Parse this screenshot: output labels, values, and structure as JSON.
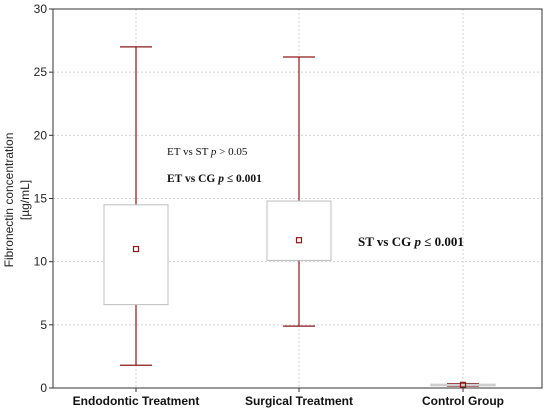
{
  "chart_data": {
    "type": "box",
    "ylabel_line1": "Fibronectin concentration",
    "ylabel_line2": "[µg/mL]",
    "ylim": [
      0,
      30
    ],
    "yticks": [
      0,
      5,
      10,
      15,
      20,
      25,
      30
    ],
    "grid": true,
    "categories": [
      "Endodontic Treatment",
      "Surgical Treatment",
      "Control Group"
    ],
    "boxes": [
      {
        "category": "Endodontic Treatment",
        "min": 1.8,
        "q1": 6.6,
        "median": 11.0,
        "q3": 14.5,
        "max": 27.0
      },
      {
        "category": "Surgical Treatment",
        "min": 4.9,
        "q1": 10.1,
        "median": 11.7,
        "q3": 14.8,
        "max": 26.2
      },
      {
        "category": "Control Group",
        "min": 0.15,
        "q1": 0.2,
        "median": 0.25,
        "q3": 0.3,
        "max": 0.35
      }
    ],
    "annotations": {
      "a1_prefix": "ET vs ST ",
      "a1_p": "p",
      "a1_suffix": " > 0.05",
      "a2_prefix": "ET vs CG ",
      "a2_p": "p",
      "a2_suffix": " ≤ 0.001",
      "a3_prefix": "ST vs CG ",
      "a3_p": "p",
      "a3_suffix": " ≤ 0.001"
    },
    "colors": {
      "whisker": "#8b1a1a",
      "box_border": "#bdbdbd",
      "median_marker": "#8b1a1a",
      "grid": "#d3d3d3",
      "axes": "#333333"
    }
  }
}
